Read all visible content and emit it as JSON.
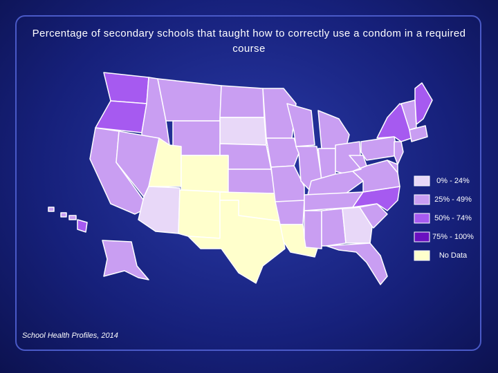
{
  "title": "Percentage of secondary schools that taught how to correctly use a condom in a required course",
  "legend": {
    "items": [
      {
        "label": "0% - 24%",
        "color": "#e8d8f8"
      },
      {
        "label": "25% - 49%",
        "color": "#c99ef2"
      },
      {
        "label": "50% - 74%",
        "color": "#a65af0"
      },
      {
        "label": "75% - 100%",
        "color": "#6a10c0"
      },
      {
        "label": "No Data",
        "color": "#ffffcc"
      }
    ]
  },
  "source": "School Health Profiles, 2014"
}
